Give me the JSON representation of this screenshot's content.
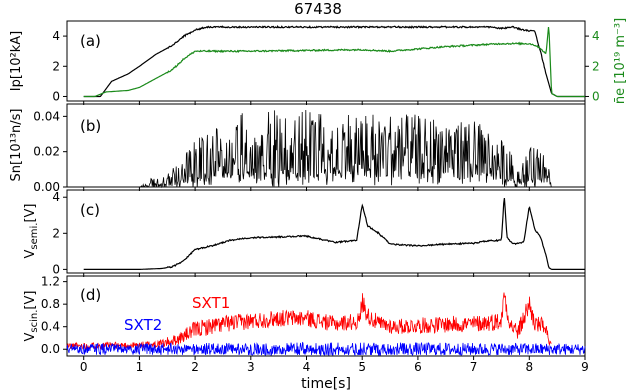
{
  "title": "67438",
  "xlabel": "time[s]",
  "colors": {
    "black": "#000000",
    "green": "#1a8a1a",
    "red": "#ff0000",
    "blue": "#0000ff"
  },
  "chart_data": [
    {
      "type": "line",
      "panel_label": "(a)",
      "ylabel": "Ip[10²kA]",
      "ylabel_right": "n̄e [10¹⁹ m⁻³]",
      "xlim": [
        -0.3,
        9.0
      ],
      "ylim": [
        -0.3,
        5.0
      ],
      "yticks": [
        0,
        2,
        4
      ],
      "ylim_right": [
        -0.3,
        5.0
      ],
      "yticks_right": [
        0,
        2,
        4
      ],
      "series": [
        {
          "color": "#000000",
          "axis": "left",
          "x": [
            0,
            0.3,
            0.5,
            0.8,
            1.0,
            1.3,
            1.6,
            1.8,
            2.0,
            2.2,
            2.5,
            3,
            4,
            5,
            6,
            7,
            7.3,
            7.5,
            7.7,
            7.9,
            8.1,
            8.2,
            8.3,
            8.4,
            8.5,
            9.0
          ],
          "y": [
            0,
            0.0,
            1.0,
            1.5,
            2.0,
            2.8,
            3.4,
            4.0,
            4.4,
            4.6,
            4.6,
            4.6,
            4.6,
            4.6,
            4.6,
            4.6,
            4.6,
            4.5,
            4.6,
            4.4,
            4.3,
            3.0,
            1.5,
            0.2,
            0.0,
            0.0
          ]
        },
        {
          "color": "#1a8a1a",
          "axis": "right",
          "x": [
            0,
            0.2,
            0.4,
            0.8,
            1.0,
            1.3,
            1.6,
            1.8,
            2.0,
            2.2,
            2.5,
            3,
            4,
            5,
            5.5,
            6,
            6.5,
            7,
            7.5,
            8.0,
            8.1,
            8.2,
            8.3,
            8.35,
            8.4,
            8.5,
            9.0
          ],
          "y": [
            0,
            0.0,
            0.3,
            0.4,
            0.6,
            1.2,
            1.8,
            2.5,
            3.0,
            3.0,
            3.0,
            3.0,
            3.05,
            3.1,
            3.0,
            3.15,
            3.3,
            3.4,
            3.5,
            3.5,
            3.4,
            3.2,
            2.8,
            4.8,
            0.2,
            0.0,
            0.0
          ]
        }
      ]
    },
    {
      "type": "line",
      "panel_label": "(b)",
      "ylabel": "Sn[10¹³n/s]",
      "xlim": [
        -0.3,
        9.0
      ],
      "ylim": [
        0.0,
        0.047
      ],
      "yticks": [
        0.0,
        0.02,
        0.04
      ],
      "ytick_labels": [
        "0.00",
        "0.02",
        "0.04"
      ],
      "series": [
        {
          "color": "#000000",
          "kind": "noise",
          "x": [
            0.0,
            1.0,
            1.2,
            1.5,
            1.8,
            2.0,
            2.5,
            3.0,
            4.0,
            5.0,
            6.0,
            7.0,
            7.4,
            7.6,
            7.8,
            8.0,
            8.3,
            8.4,
            9.0
          ],
          "y": [
            0.0,
            0.0,
            0.002,
            0.003,
            0.008,
            0.012,
            0.02,
            0.022,
            0.022,
            0.022,
            0.021,
            0.02,
            0.015,
            0.012,
            0.005,
            0.01,
            0.012,
            0.0,
            0.0
          ],
          "spread": [
            0.0,
            0.0,
            0.003,
            0.004,
            0.01,
            0.014,
            0.018,
            0.022,
            0.022,
            0.022,
            0.02,
            0.018,
            0.015,
            0.012,
            0.006,
            0.012,
            0.012,
            0.0,
            0.0
          ]
        }
      ]
    },
    {
      "type": "line",
      "panel_label": "(c)",
      "ylabel": "Vsemi.[V]",
      "xlim": [
        -0.3,
        9.0
      ],
      "ylim": [
        -0.2,
        4.4
      ],
      "yticks": [
        0,
        2,
        4
      ],
      "series": [
        {
          "color": "#000000",
          "x": [
            0,
            1.0,
            1.4,
            1.6,
            1.8,
            2.0,
            2.3,
            2.6,
            3,
            3.5,
            4,
            4.5,
            4.9,
            5.0,
            5.1,
            5.3,
            5.5,
            6,
            6.5,
            7,
            7.3,
            7.5,
            7.55,
            7.6,
            7.7,
            7.9,
            8.0,
            8.1,
            8.2,
            8.3,
            8.35,
            8.4,
            9.0
          ],
          "y": [
            0,
            0.0,
            0.05,
            0.15,
            0.5,
            1.1,
            1.3,
            1.6,
            1.75,
            1.8,
            1.85,
            1.5,
            1.6,
            3.6,
            2.4,
            2.0,
            1.4,
            1.3,
            1.4,
            1.45,
            1.6,
            1.6,
            4.1,
            1.8,
            1.4,
            1.5,
            3.5,
            2.2,
            1.8,
            0.8,
            0.1,
            0.0,
            0.0
          ]
        }
      ]
    },
    {
      "type": "line",
      "panel_label": "(d)",
      "ylabel": "Vscin.[V]",
      "xlim": [
        -0.3,
        9.0
      ],
      "ylim": [
        -0.12,
        1.3
      ],
      "yticks": [
        0.0,
        0.4,
        0.8,
        1.2
      ],
      "ytick_labels": [
        "0.0",
        "0.4",
        "0.8",
        "1.2"
      ],
      "series": [
        {
          "name": "SXT1",
          "color": "#ff0000",
          "kind": "band",
          "x": [
            -0.3,
            1.0,
            1.4,
            1.7,
            2.0,
            2.5,
            3.0,
            3.5,
            4.0,
            4.5,
            4.95,
            5.0,
            5.1,
            5.3,
            5.6,
            6.0,
            6.5,
            7.0,
            7.5,
            7.55,
            7.65,
            7.8,
            8.0,
            8.1,
            8.3,
            8.35,
            8.4
          ],
          "y": [
            0.06,
            0.07,
            0.1,
            0.18,
            0.35,
            0.45,
            0.5,
            0.55,
            0.55,
            0.45,
            0.5,
            0.85,
            0.6,
            0.45,
            0.4,
            0.42,
            0.44,
            0.45,
            0.5,
            1.0,
            0.45,
            0.3,
            0.8,
            0.45,
            0.4,
            0.1,
            0.07
          ],
          "spread": [
            0.06,
            0.06,
            0.08,
            0.1,
            0.15,
            0.15,
            0.15,
            0.15,
            0.15,
            0.14,
            0.15,
            0.2,
            0.15,
            0.15,
            0.14,
            0.14,
            0.15,
            0.15,
            0.16,
            0.2,
            0.14,
            0.15,
            0.2,
            0.15,
            0.15,
            0.06,
            0.05
          ]
        },
        {
          "name": "SXT2",
          "color": "#0000ff",
          "kind": "band",
          "x": [
            -0.3,
            2.0,
            4.0,
            6.0,
            8.0,
            9.0
          ],
          "y": [
            0.0,
            0.0,
            0.0,
            0.0,
            0.0,
            0.0
          ],
          "spread": [
            0.1,
            0.11,
            0.12,
            0.12,
            0.11,
            0.1
          ]
        }
      ],
      "annotations": [
        "SXT1",
        "SXT2"
      ]
    }
  ],
  "xticks": [
    0,
    1,
    2,
    3,
    4,
    5,
    6,
    7,
    8,
    9
  ]
}
